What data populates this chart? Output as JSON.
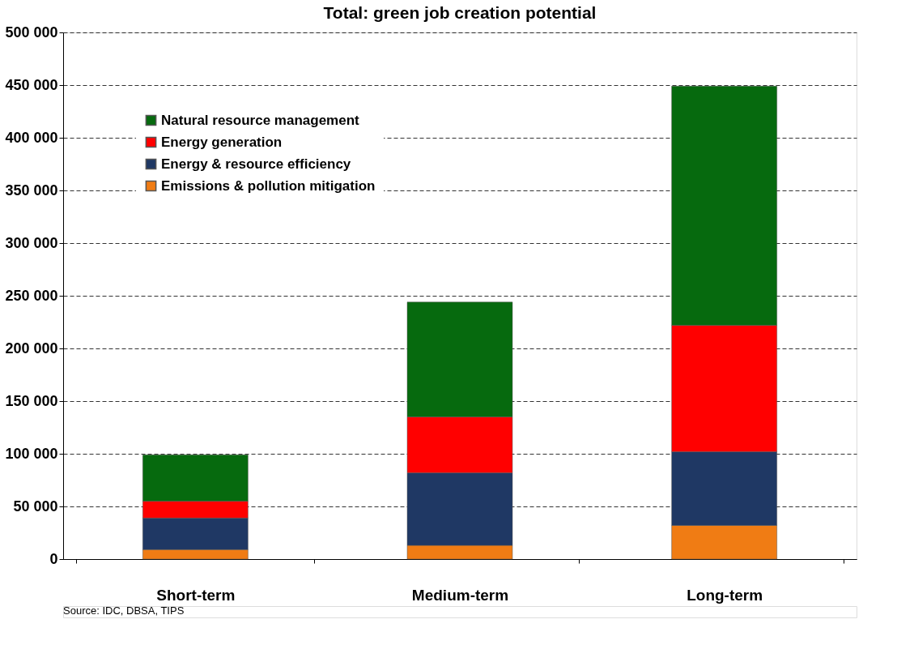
{
  "chart_data": {
    "type": "bar",
    "title": "Total: green job creation potential",
    "categories": [
      "Short-term",
      "Medium-term",
      "Long-term"
    ],
    "stacked": true,
    "series": [
      {
        "name": "Emissions & pollution mitigation",
        "color": "#f07c14",
        "values": [
          9000,
          13000,
          32000
        ]
      },
      {
        "name": "Energy & resource efficiency",
        "color": "#1f3864",
        "values": [
          30000,
          69000,
          70000
        ]
      },
      {
        "name": "Energy generation",
        "color": "#ff0000",
        "values": [
          16000,
          53000,
          120000
        ]
      },
      {
        "name": "Natural resource management",
        "color": "#066a0e",
        "values": [
          44000,
          109000,
          227000
        ]
      }
    ],
    "ylim": [
      0,
      500000
    ],
    "yticks": [
      {
        "value": 0,
        "label": "0"
      },
      {
        "value": 50000,
        "label": "50 000"
      },
      {
        "value": 100000,
        "label": "100 000"
      },
      {
        "value": 150000,
        "label": "150 000"
      },
      {
        "value": 200000,
        "label": "200 000"
      },
      {
        "value": 250000,
        "label": "250 000"
      },
      {
        "value": 300000,
        "label": "300 000"
      },
      {
        "value": 350000,
        "label": "350 000"
      },
      {
        "value": 400000,
        "label": "400 000"
      },
      {
        "value": 450000,
        "label": "450 000"
      },
      {
        "value": 500000,
        "label": "500 000"
      }
    ],
    "grid": "y",
    "legend": "top left",
    "annotations": [
      "Source: IDC, DBSA, TIPS"
    ]
  }
}
